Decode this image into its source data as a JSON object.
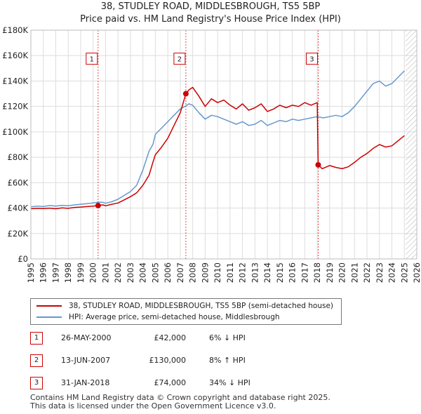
{
  "title_line1": "38, STUDLEY ROAD, MIDDLESBROUGH, TS5 5BP",
  "title_line2": "Price paid vs. HM Land Registry's House Price Index (HPI)",
  "colors": {
    "property": "#cc0000",
    "hpi": "#6699cc",
    "grid": "#dddddd",
    "future_hatch": "#aaaaaa",
    "marker_border": "#cc0000"
  },
  "legend": {
    "property_label": "38, STUDLEY ROAD, MIDDLESBROUGH, TS5 5BP (semi-detached house)",
    "hpi_label": "HPI: Average price, semi-detached house, Middlesbrough"
  },
  "sales": [
    {
      "num": "1",
      "date": "26-MAY-2000",
      "price": "£42,000",
      "hpi_rel": "6% ↓ HPI"
    },
    {
      "num": "2",
      "date": "13-JUN-2007",
      "price": "£130,000",
      "hpi_rel": "8% ↑ HPI"
    },
    {
      "num": "3",
      "date": "31-JAN-2018",
      "price": "£74,000",
      "hpi_rel": "34% ↓ HPI"
    }
  ],
  "footer": {
    "line1": "Contains HM Land Registry data © Crown copyright and database right 2025.",
    "line2": "This data is licensed under the Open Government Licence v3.0."
  },
  "chart_data": {
    "type": "line",
    "title": "38, STUDLEY ROAD, MIDDLESBROUGH, TS5 5BP",
    "subtitle": "Price paid vs. HM Land Registry's House Price Index (HPI)",
    "xlabel": "",
    "ylabel": "",
    "xlim": [
      1995,
      2026
    ],
    "ylim": [
      0,
      180000
    ],
    "grid": true,
    "legend_position": "below",
    "x_ticks": [
      "1995",
      "1996",
      "1997",
      "1998",
      "1999",
      "2000",
      "2001",
      "2002",
      "2003",
      "2004",
      "2005",
      "2006",
      "2007",
      "2008",
      "2009",
      "2010",
      "2011",
      "2012",
      "2013",
      "2014",
      "2015",
      "2016",
      "2017",
      "2018",
      "2019",
      "2020",
      "2021",
      "2022",
      "2023",
      "2024",
      "2025",
      "2026"
    ],
    "y_ticks": [
      {
        "value": 0,
        "label": "£0"
      },
      {
        "value": 20000,
        "label": "£20K"
      },
      {
        "value": 40000,
        "label": "£40K"
      },
      {
        "value": 60000,
        "label": "£60K"
      },
      {
        "value": 80000,
        "label": "£80K"
      },
      {
        "value": 100000,
        "label": "£100K"
      },
      {
        "value": 120000,
        "label": "£120K"
      },
      {
        "value": 140000,
        "label": "£140K"
      },
      {
        "value": 160000,
        "label": "£160K"
      },
      {
        "value": 180000,
        "label": "£180K"
      }
    ],
    "future_region_start": 2025.1,
    "series": [
      {
        "name": "38, STUDLEY ROAD, MIDDLESBROUGH, TS5 5BP (semi-detached house)",
        "color": "#cc0000",
        "points": [
          [
            1995.0,
            39500
          ],
          [
            1995.5,
            39800
          ],
          [
            1996.0,
            39600
          ],
          [
            1996.5,
            40000
          ],
          [
            1997.0,
            39500
          ],
          [
            1997.5,
            40200
          ],
          [
            1998.0,
            39800
          ],
          [
            1998.5,
            40500
          ],
          [
            1999.0,
            40800
          ],
          [
            1999.5,
            41200
          ],
          [
            2000.0,
            41600
          ],
          [
            2000.4,
            42000
          ],
          [
            2000.8,
            42500
          ],
          [
            2001.0,
            41800
          ],
          [
            2001.5,
            43000
          ],
          [
            2002.0,
            44000
          ],
          [
            2002.5,
            46500
          ],
          [
            2003.0,
            49000
          ],
          [
            2003.5,
            52000
          ],
          [
            2004.0,
            58000
          ],
          [
            2004.5,
            66000
          ],
          [
            2004.8,
            76000
          ],
          [
            2005.0,
            82000
          ],
          [
            2005.5,
            88000
          ],
          [
            2006.0,
            95000
          ],
          [
            2006.5,
            105000
          ],
          [
            2007.0,
            115000
          ],
          [
            2007.45,
            130000
          ],
          [
            2007.7,
            133000
          ],
          [
            2008.0,
            135000
          ],
          [
            2008.5,
            128000
          ],
          [
            2009.0,
            120000
          ],
          [
            2009.5,
            126000
          ],
          [
            2010.0,
            123000
          ],
          [
            2010.5,
            125000
          ],
          [
            2011.0,
            121000
          ],
          [
            2011.5,
            118000
          ],
          [
            2012.0,
            122000
          ],
          [
            2012.5,
            117000
          ],
          [
            2013.0,
            119000
          ],
          [
            2013.5,
            122000
          ],
          [
            2014.0,
            116000
          ],
          [
            2014.5,
            118000
          ],
          [
            2015.0,
            121000
          ],
          [
            2015.5,
            119000
          ],
          [
            2016.0,
            121000
          ],
          [
            2016.5,
            120000
          ],
          [
            2017.0,
            123000
          ],
          [
            2017.5,
            121000
          ],
          [
            2018.0,
            123000
          ],
          [
            2018.08,
            74000
          ],
          [
            2018.4,
            71000
          ],
          [
            2019.0,
            73500
          ],
          [
            2019.5,
            72000
          ],
          [
            2020.0,
            71000
          ],
          [
            2020.5,
            72500
          ],
          [
            2021.0,
            76000
          ],
          [
            2021.5,
            80000
          ],
          [
            2022.0,
            83000
          ],
          [
            2022.5,
            87000
          ],
          [
            2023.0,
            90000
          ],
          [
            2023.5,
            88000
          ],
          [
            2024.0,
            89000
          ],
          [
            2024.5,
            93000
          ],
          [
            2025.0,
            97000
          ]
        ]
      },
      {
        "name": "HPI: Average price, semi-detached house, Middlesbrough",
        "color": "#6699cc",
        "points": [
          [
            1995.0,
            41000
          ],
          [
            1995.5,
            41500
          ],
          [
            1996.0,
            41200
          ],
          [
            1996.5,
            42000
          ],
          [
            1997.0,
            41500
          ],
          [
            1997.5,
            42200
          ],
          [
            1998.0,
            41800
          ],
          [
            1998.5,
            42500
          ],
          [
            1999.0,
            43000
          ],
          [
            1999.5,
            43500
          ],
          [
            2000.0,
            44000
          ],
          [
            2000.4,
            44700
          ],
          [
            2000.8,
            44500
          ],
          [
            2001.0,
            43800
          ],
          [
            2001.5,
            45000
          ],
          [
            2002.0,
            47000
          ],
          [
            2002.5,
            50000
          ],
          [
            2003.0,
            53000
          ],
          [
            2003.5,
            58000
          ],
          [
            2004.0,
            70000
          ],
          [
            2004.5,
            85000
          ],
          [
            2004.8,
            90000
          ],
          [
            2005.0,
            98000
          ],
          [
            2005.5,
            103000
          ],
          [
            2006.0,
            108000
          ],
          [
            2006.5,
            113000
          ],
          [
            2007.0,
            118000
          ],
          [
            2007.45,
            120400
          ],
          [
            2007.7,
            122000
          ],
          [
            2008.0,
            121000
          ],
          [
            2008.5,
            115000
          ],
          [
            2009.0,
            110000
          ],
          [
            2009.5,
            113000
          ],
          [
            2010.0,
            112000
          ],
          [
            2010.5,
            110000
          ],
          [
            2011.0,
            108000
          ],
          [
            2011.5,
            106000
          ],
          [
            2012.0,
            108000
          ],
          [
            2012.5,
            105000
          ],
          [
            2013.0,
            106000
          ],
          [
            2013.5,
            109000
          ],
          [
            2014.0,
            105000
          ],
          [
            2014.5,
            107000
          ],
          [
            2015.0,
            109000
          ],
          [
            2015.5,
            108000
          ],
          [
            2016.0,
            110000
          ],
          [
            2016.5,
            109000
          ],
          [
            2017.0,
            110000
          ],
          [
            2017.5,
            111000
          ],
          [
            2018.0,
            112000
          ],
          [
            2018.5,
            111000
          ],
          [
            2019.0,
            112000
          ],
          [
            2019.5,
            113000
          ],
          [
            2020.0,
            112000
          ],
          [
            2020.5,
            115000
          ],
          [
            2021.0,
            120000
          ],
          [
            2021.5,
            126000
          ],
          [
            2022.0,
            132000
          ],
          [
            2022.5,
            138000
          ],
          [
            2023.0,
            140000
          ],
          [
            2023.5,
            136000
          ],
          [
            2024.0,
            138000
          ],
          [
            2024.5,
            143000
          ],
          [
            2025.0,
            148000
          ]
        ]
      }
    ],
    "sale_markers": [
      {
        "label": "1",
        "x": 2000.4,
        "y": 42000
      },
      {
        "label": "2",
        "x": 2007.45,
        "y": 130000
      },
      {
        "label": "3",
        "x": 2018.08,
        "y": 74000
      }
    ],
    "marker_label_level": 157000
  }
}
